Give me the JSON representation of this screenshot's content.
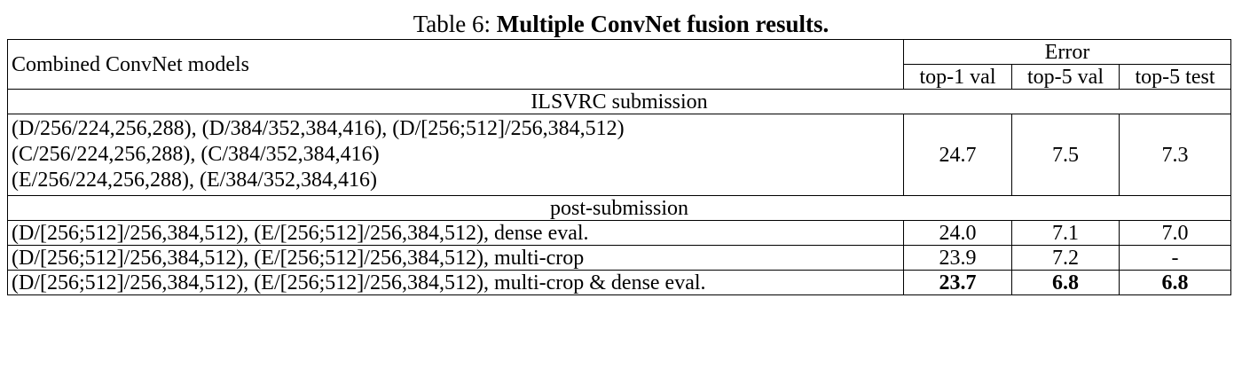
{
  "caption": {
    "prefix": "Table 6: ",
    "title": "Multiple ConvNet fusion results."
  },
  "header": {
    "models_label": "Combined ConvNet models",
    "error_label": "Error",
    "columns": [
      "top-1 val",
      "top-5 val",
      "top-5 test"
    ]
  },
  "sections": [
    {
      "title": "ILSVRC submission",
      "rows": [
        {
          "lines": [
            "(D/256/224,256,288), (D/384/352,384,416), (D/[256;512]/256,384,512)",
            "(C/256/224,256,288), (C/384/352,384,416)",
            "(E/256/224,256,288), (E/384/352,384,416)"
          ],
          "values": [
            "24.7",
            "7.5",
            "7.3"
          ]
        }
      ]
    },
    {
      "title": "post-submission",
      "rows": [
        {
          "lines": [
            "(D/[256;512]/256,384,512), (E/[256;512]/256,384,512), dense eval."
          ],
          "values": [
            "24.0",
            "7.1",
            "7.0"
          ]
        },
        {
          "lines": [
            "(D/[256;512]/256,384,512), (E/[256;512]/256,384,512), multi-crop"
          ],
          "values": [
            "23.9",
            "7.2",
            "-"
          ]
        },
        {
          "lines": [
            "(D/[256;512]/256,384,512), (E/[256;512]/256,384,512), multi-crop & dense eval."
          ],
          "values": [
            "23.7",
            "6.8",
            "6.8"
          ],
          "bold": true
        }
      ]
    }
  ]
}
